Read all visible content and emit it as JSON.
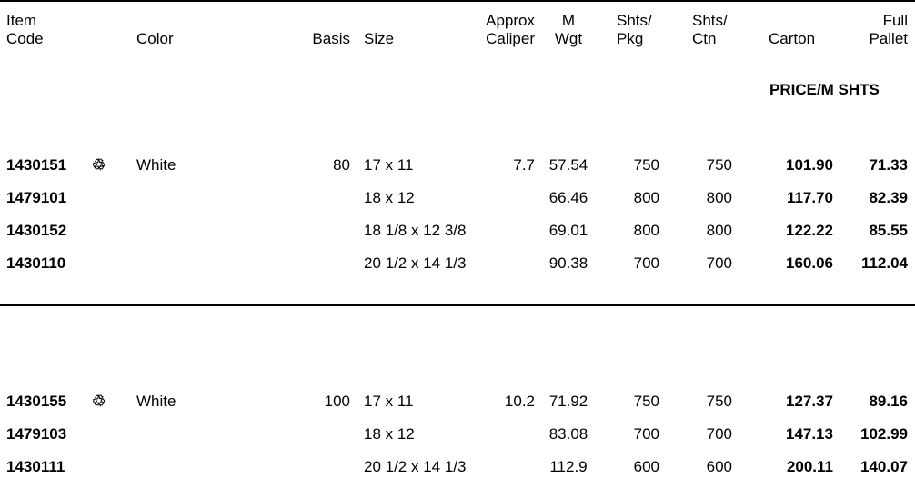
{
  "headers": {
    "item_code": [
      "Item",
      "Code"
    ],
    "color": "Color",
    "basis": "Basis",
    "size": "Size",
    "caliper": [
      "Approx",
      "Caliper"
    ],
    "mwgt": [
      "M",
      "Wgt"
    ],
    "shts_pkg": [
      "Shts/",
      "Pkg"
    ],
    "shts_ctn": [
      "Shts/",
      "Ctn"
    ],
    "carton": "Carton",
    "pallet": [
      "Full",
      "Pallet"
    ]
  },
  "price_label": "PRICE/M SHTS",
  "recycle_icon": "recycle-icon",
  "groups": [
    {
      "rows": [
        {
          "code": "1430151",
          "recycled": true,
          "color": "White",
          "basis": "80",
          "size": "17 x 11",
          "caliper": "7.7",
          "mwgt": "57.54",
          "pkg": "750",
          "ctn": "750",
          "carton": "101.90",
          "pallet": "71.33"
        },
        {
          "code": "1479101",
          "recycled": false,
          "color": "",
          "basis": "",
          "size": "18 x 12",
          "caliper": "",
          "mwgt": "66.46",
          "pkg": "800",
          "ctn": "800",
          "carton": "117.70",
          "pallet": "82.39"
        },
        {
          "code": "1430152",
          "recycled": false,
          "color": "",
          "basis": "",
          "size": "18 1/8 x 12 3/8",
          "caliper": "",
          "mwgt": "69.01",
          "pkg": "800",
          "ctn": "800",
          "carton": "122.22",
          "pallet": "85.55"
        },
        {
          "code": "1430110",
          "recycled": false,
          "color": "",
          "basis": "",
          "size": "20 1/2 x 14 1/3",
          "caliper": "",
          "mwgt": "90.38",
          "pkg": "700",
          "ctn": "700",
          "carton": "160.06",
          "pallet": "112.04"
        }
      ]
    },
    {
      "rows": [
        {
          "code": "1430155",
          "recycled": true,
          "color": "White",
          "basis": "100",
          "size": "17 x 11",
          "caliper": "10.2",
          "mwgt": "71.92",
          "pkg": "750",
          "ctn": "750",
          "carton": "127.37",
          "pallet": "89.16"
        },
        {
          "code": "1479103",
          "recycled": false,
          "color": "",
          "basis": "",
          "size": "18 x 12",
          "caliper": "",
          "mwgt": "83.08",
          "pkg": "700",
          "ctn": "700",
          "carton": "147.13",
          "pallet": "102.99"
        },
        {
          "code": "1430111",
          "recycled": false,
          "color": "",
          "basis": "",
          "size": "20 1/2 x 14 1/3",
          "caliper": "",
          "mwgt": "112.9",
          "pkg": "600",
          "ctn": "600",
          "carton": "200.11",
          "pallet": "140.07"
        }
      ]
    }
  ]
}
